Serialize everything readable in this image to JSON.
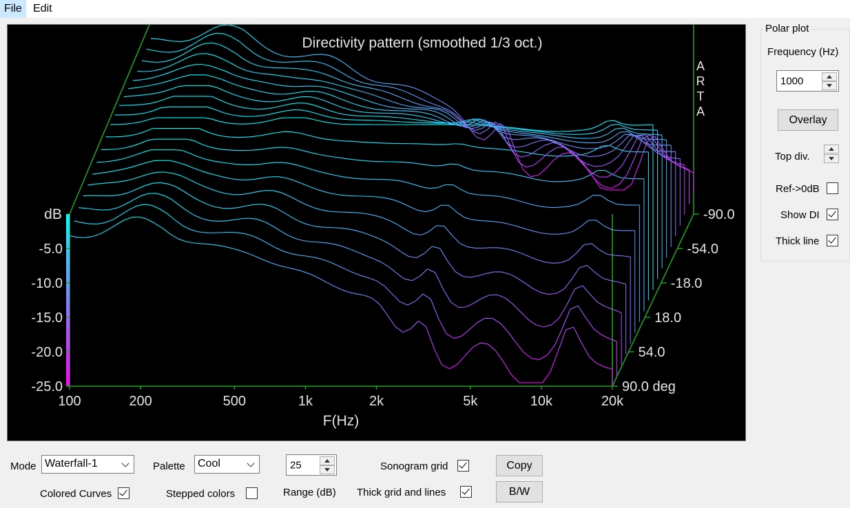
{
  "menu": {
    "file": "File",
    "edit": "Edit"
  },
  "chart_data": {
    "type": "waterfall",
    "title": "Directivity pattern (smoothed 1/3 oct.)",
    "watermark": "ARTA",
    "xlabel": "F(Hz)",
    "ylabel": "dB",
    "x_ticks": [
      "100",
      "200",
      "500",
      "1k",
      "2k",
      "5k",
      "10k",
      "20k"
    ],
    "y_ticks": [
      "-5.0",
      "-10.0",
      "-15.0",
      "-20.0",
      "-25.0"
    ],
    "angle_ticks": [
      "-90.0",
      "-54.0",
      "-18.0",
      "18.0",
      "54.0",
      "90.0 deg"
    ],
    "xlim": [
      100,
      20000
    ],
    "ylim": [
      -25,
      0
    ],
    "angle_range": [
      -90,
      90
    ],
    "palette": "Cool",
    "colors": {
      "background": "#000000",
      "frame": "#1fa01f",
      "text": "#e6e6e6",
      "palette_low": "#ff00ff",
      "palette_high": "#00ffff"
    }
  },
  "polar": {
    "group_title": "Polar plot",
    "frequency_label": "Frequency (Hz)",
    "frequency_value": "1000",
    "overlay_button": "Overlay",
    "top_div_label": "Top div.",
    "ref_label": "Ref->0dB",
    "ref_checked": false,
    "show_di_label": "Show DI",
    "show_di_checked": true,
    "thick_line_label": "Thick line",
    "thick_line_checked": true
  },
  "controls": {
    "mode_label": "Mode",
    "mode_value": "Waterfall-1",
    "palette_label": "Palette",
    "palette_value": "Cool",
    "range_value": "25",
    "range_label": "Range (dB)",
    "sonogram_grid_label": "Sonogram grid",
    "sonogram_grid_checked": true,
    "copy_button": "Copy",
    "colored_curves_label": "Colored Curves",
    "colored_curves_checked": true,
    "stepped_colors_label": "Stepped colors",
    "stepped_colors_checked": false,
    "thick_grid_label": "Thick grid and  lines",
    "thick_grid_checked": true,
    "bw_button": "B/W"
  }
}
